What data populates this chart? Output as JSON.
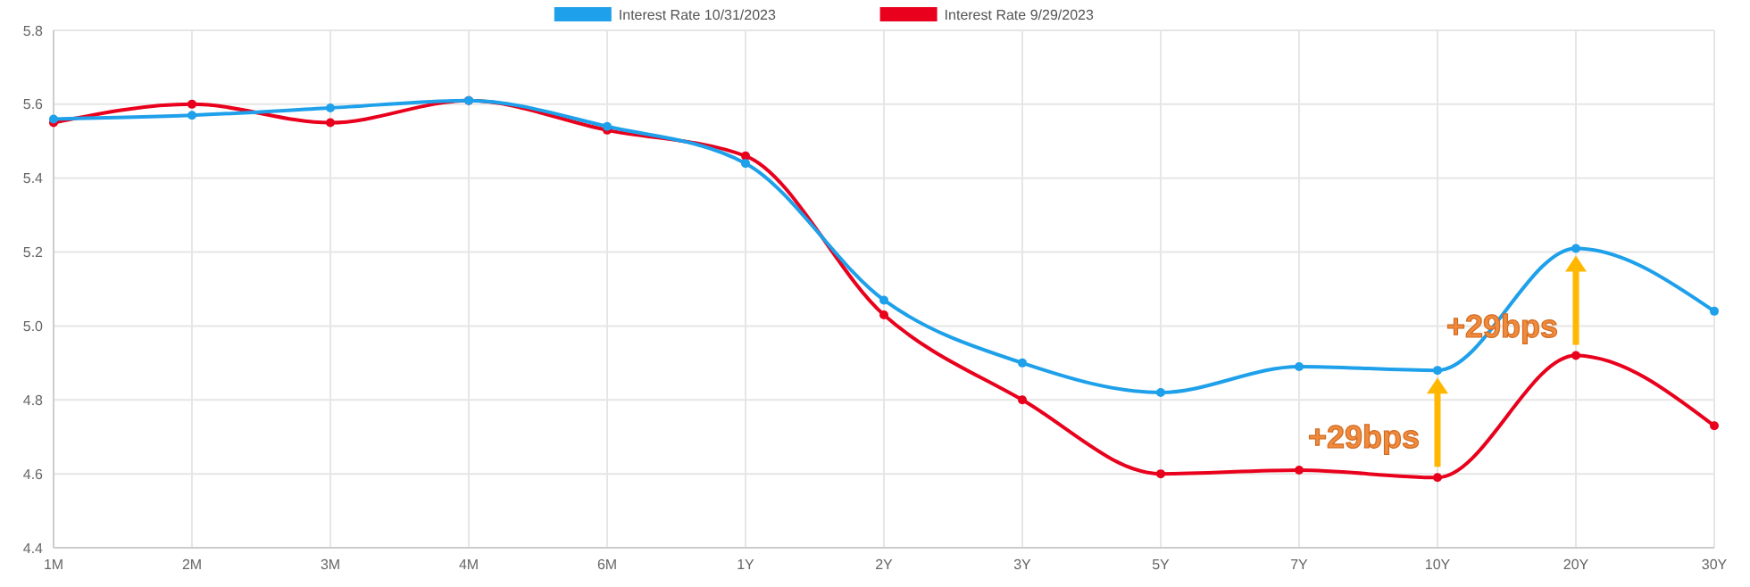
{
  "chart_data": {
    "type": "line",
    "categories": [
      "1M",
      "2M",
      "3M",
      "4M",
      "6M",
      "1Y",
      "2Y",
      "3Y",
      "5Y",
      "7Y",
      "10Y",
      "20Y",
      "30Y"
    ],
    "series": [
      {
        "name": "Interest Rate 10/31/2023",
        "color": "#1ea0ea",
        "values": [
          5.56,
          5.57,
          5.59,
          5.61,
          5.54,
          5.44,
          5.07,
          4.9,
          4.82,
          4.89,
          4.88,
          5.21,
          5.04
        ]
      },
      {
        "name": "Interest Rate 9/29/2023",
        "color": "#e8001c",
        "values": [
          5.55,
          5.6,
          5.55,
          5.61,
          5.53,
          5.46,
          5.03,
          4.8,
          4.6,
          4.61,
          4.59,
          4.92,
          4.73
        ]
      }
    ],
    "ylim": [
      4.4,
      5.8
    ],
    "yticks": [
      4.4,
      4.6,
      4.8,
      {
        "value": 5,
        "label": "5.0"
      },
      5.2,
      5.4,
      5.6,
      5.8
    ],
    "grid": true,
    "legend": "top",
    "marker": "circle",
    "line_style": "solid",
    "annotations": [
      "+29bps",
      "+29bps"
    ]
  }
}
